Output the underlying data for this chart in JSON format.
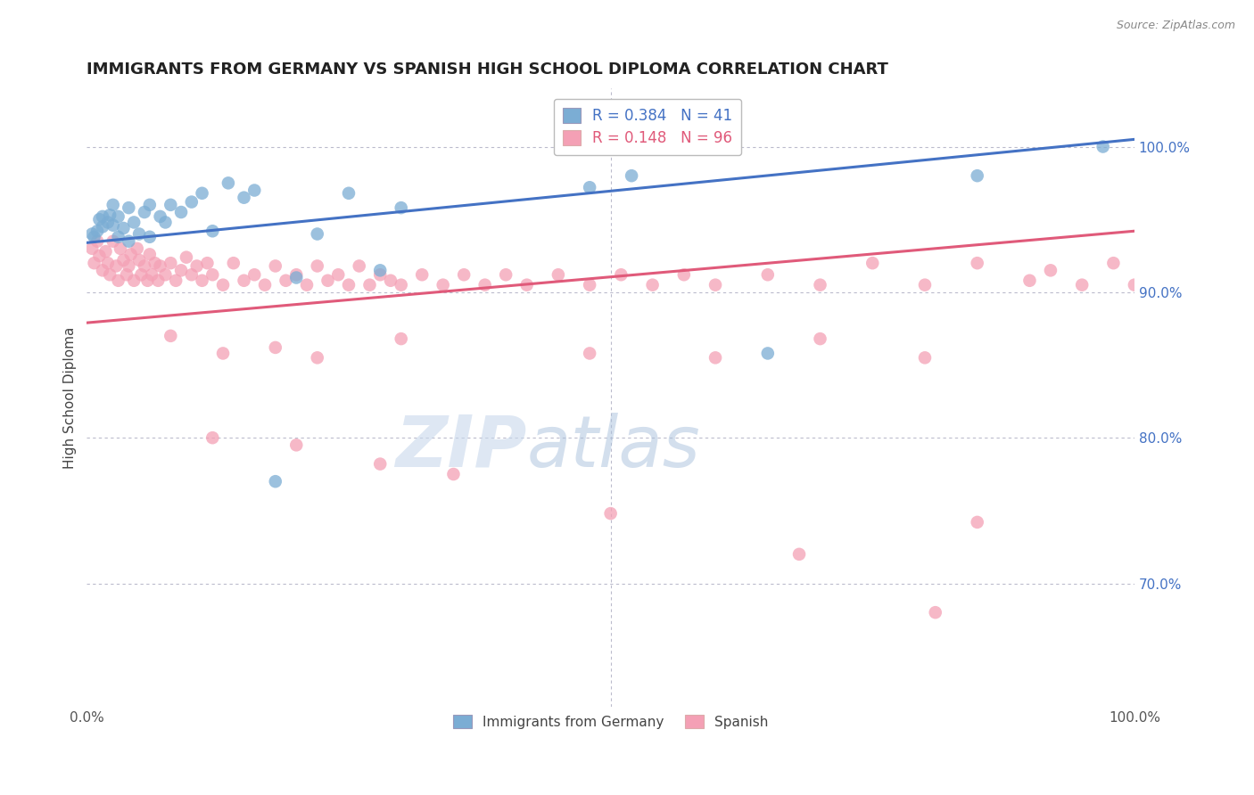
{
  "title": "IMMIGRANTS FROM GERMANY VS SPANISH HIGH SCHOOL DIPLOMA CORRELATION CHART",
  "source": "Source: ZipAtlas.com",
  "ylabel": "High School Diploma",
  "legend_blue_label": "Immigrants from Germany",
  "legend_pink_label": "Spanish",
  "r_blue": 0.384,
  "n_blue": 41,
  "r_pink": 0.148,
  "n_pink": 96,
  "y_tick_labels": [
    "70.0%",
    "80.0%",
    "90.0%",
    "100.0%"
  ],
  "y_tick_values": [
    0.7,
    0.8,
    0.9,
    1.0
  ],
  "x_range": [
    0.0,
    1.0
  ],
  "y_range": [
    0.615,
    1.04
  ],
  "blue_color": "#7BADD4",
  "pink_color": "#F4A0B5",
  "blue_line_color": "#4472C4",
  "pink_line_color": "#E05A7A",
  "blue_line_y0": 0.934,
  "blue_line_y1": 1.005,
  "pink_line_y0": 0.879,
  "pink_line_y1": 0.942,
  "blue_x": [
    0.005,
    0.007,
    0.01,
    0.012,
    0.015,
    0.015,
    0.02,
    0.022,
    0.025,
    0.025,
    0.03,
    0.03,
    0.035,
    0.04,
    0.04,
    0.045,
    0.05,
    0.055,
    0.06,
    0.06,
    0.07,
    0.075,
    0.08,
    0.09,
    0.1,
    0.11,
    0.12,
    0.135,
    0.15,
    0.16,
    0.18,
    0.2,
    0.22,
    0.25,
    0.28,
    0.3,
    0.48,
    0.52,
    0.65,
    0.85,
    0.97
  ],
  "blue_y": [
    0.94,
    0.938,
    0.942,
    0.95,
    0.945,
    0.952,
    0.948,
    0.953,
    0.946,
    0.96,
    0.938,
    0.952,
    0.944,
    0.935,
    0.958,
    0.948,
    0.94,
    0.955,
    0.938,
    0.96,
    0.952,
    0.948,
    0.96,
    0.955,
    0.962,
    0.968,
    0.942,
    0.975,
    0.965,
    0.97,
    0.77,
    0.91,
    0.94,
    0.968,
    0.915,
    0.958,
    0.972,
    0.98,
    0.858,
    0.98,
    1.0
  ],
  "pink_x": [
    0.005,
    0.007,
    0.01,
    0.012,
    0.015,
    0.018,
    0.02,
    0.022,
    0.025,
    0.028,
    0.03,
    0.032,
    0.035,
    0.038,
    0.04,
    0.042,
    0.045,
    0.048,
    0.05,
    0.052,
    0.055,
    0.058,
    0.06,
    0.062,
    0.065,
    0.068,
    0.07,
    0.075,
    0.08,
    0.085,
    0.09,
    0.095,
    0.1,
    0.105,
    0.11,
    0.115,
    0.12,
    0.13,
    0.14,
    0.15,
    0.16,
    0.17,
    0.18,
    0.19,
    0.2,
    0.21,
    0.22,
    0.23,
    0.24,
    0.25,
    0.26,
    0.27,
    0.28,
    0.29,
    0.3,
    0.32,
    0.34,
    0.36,
    0.38,
    0.4,
    0.42,
    0.45,
    0.48,
    0.51,
    0.54,
    0.57,
    0.6,
    0.65,
    0.7,
    0.75,
    0.8,
    0.85,
    0.9,
    0.92,
    0.95,
    0.98,
    1.0,
    0.08,
    0.13,
    0.18,
    0.22,
    0.3,
    0.48,
    0.6,
    0.7,
    0.8,
    0.85,
    0.12,
    0.2,
    0.28,
    0.35,
    0.5,
    0.68,
    0.81
  ],
  "pink_y": [
    0.93,
    0.92,
    0.935,
    0.925,
    0.915,
    0.928,
    0.92,
    0.912,
    0.935,
    0.918,
    0.908,
    0.93,
    0.922,
    0.912,
    0.918,
    0.926,
    0.908,
    0.93,
    0.922,
    0.912,
    0.918,
    0.908,
    0.926,
    0.912,
    0.92,
    0.908,
    0.918,
    0.912,
    0.92,
    0.908,
    0.915,
    0.924,
    0.912,
    0.918,
    0.908,
    0.92,
    0.912,
    0.905,
    0.92,
    0.908,
    0.912,
    0.905,
    0.918,
    0.908,
    0.912,
    0.905,
    0.918,
    0.908,
    0.912,
    0.905,
    0.918,
    0.905,
    0.912,
    0.908,
    0.905,
    0.912,
    0.905,
    0.912,
    0.905,
    0.912,
    0.905,
    0.912,
    0.905,
    0.912,
    0.905,
    0.912,
    0.905,
    0.912,
    0.905,
    0.92,
    0.905,
    0.92,
    0.908,
    0.915,
    0.905,
    0.92,
    0.905,
    0.87,
    0.858,
    0.862,
    0.855,
    0.868,
    0.858,
    0.855,
    0.868,
    0.855,
    0.742,
    0.8,
    0.795,
    0.782,
    0.775,
    0.748,
    0.72,
    0.68
  ]
}
